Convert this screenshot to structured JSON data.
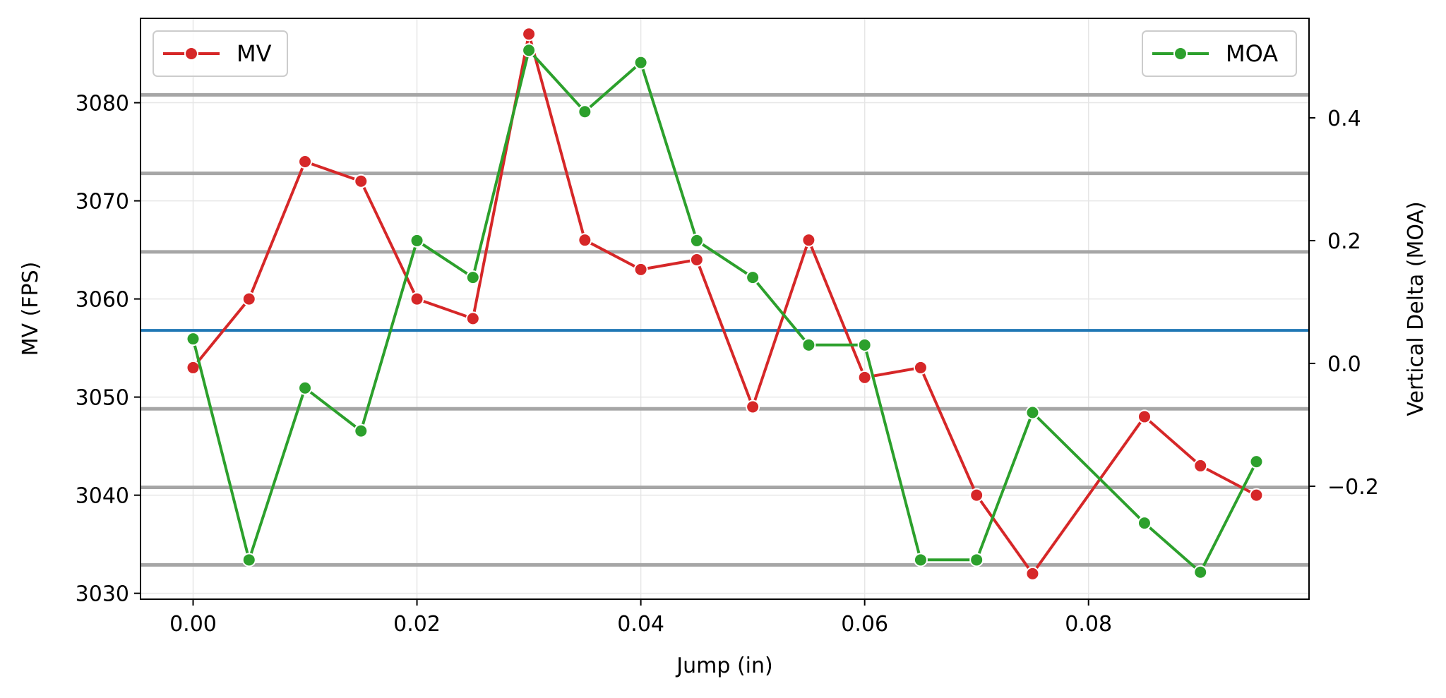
{
  "chart_data": {
    "type": "line",
    "xlabel": "Jump (in)",
    "ylabel_left": "MV (FPS)",
    "ylabel_right": "Vertical Delta (MOA)",
    "x": [
      0.0,
      0.005,
      0.01,
      0.015,
      0.02,
      0.025,
      0.03,
      0.035,
      0.04,
      0.045,
      0.05,
      0.055,
      0.06,
      0.065,
      0.07,
      0.075,
      0.08,
      0.085,
      0.09,
      0.095
    ],
    "xlim": [
      -0.0047,
      0.0997
    ],
    "ylim_left": [
      3029.4,
      3088.6
    ],
    "ylim_right": [
      -0.384,
      0.562
    ],
    "x_ticks": [
      "0.00",
      "0.02",
      "0.04",
      "0.06",
      "0.08"
    ],
    "x_tick_values": [
      0.0,
      0.02,
      0.04,
      0.06,
      0.08
    ],
    "y_left_ticks": [
      "3030",
      "3040",
      "3050",
      "3060",
      "3070",
      "3080"
    ],
    "y_left_tick_values": [
      3030,
      3040,
      3050,
      3060,
      3070,
      3080
    ],
    "y_right_ticks": [
      "−0.2",
      "0.0",
      "0.2",
      "0.4"
    ],
    "y_right_tick_values": [
      -0.2,
      0.0,
      0.2,
      0.4
    ],
    "grid": true,
    "series": [
      {
        "name": "MV",
        "axis": "left",
        "color": "#d62728",
        "points": [
          [
            0.0,
            3053
          ],
          [
            0.005,
            3060
          ],
          [
            0.01,
            3074
          ],
          [
            0.015,
            3072
          ],
          [
            0.02,
            3060
          ],
          [
            0.025,
            3058
          ],
          [
            0.03,
            3087
          ],
          [
            0.035,
            3066
          ],
          [
            0.04,
            3063
          ],
          [
            0.045,
            3064
          ],
          [
            0.05,
            3049
          ],
          [
            0.055,
            3066
          ],
          [
            0.06,
            3052
          ],
          [
            0.065,
            3053
          ],
          [
            0.07,
            3040
          ],
          [
            0.075,
            3032
          ],
          [
            0.085,
            3048
          ],
          [
            0.09,
            3043
          ],
          [
            0.095,
            3040
          ]
        ]
      },
      {
        "name": "MOA",
        "axis": "right",
        "color": "#2ca02c",
        "points": [
          [
            0.0,
            0.04
          ],
          [
            0.005,
            -0.32
          ],
          [
            0.01,
            -0.04
          ],
          [
            0.015,
            -0.11
          ],
          [
            0.02,
            0.2
          ],
          [
            0.025,
            0.14
          ],
          [
            0.03,
            0.51
          ],
          [
            0.035,
            0.41
          ],
          [
            0.04,
            0.49
          ],
          [
            0.045,
            0.2
          ],
          [
            0.05,
            0.14
          ],
          [
            0.055,
            0.03
          ],
          [
            0.06,
            0.03
          ],
          [
            0.065,
            -0.32
          ],
          [
            0.07,
            -0.32
          ],
          [
            0.075,
            -0.08
          ],
          [
            0.085,
            -0.26
          ],
          [
            0.09,
            -0.34
          ],
          [
            0.095,
            -0.16
          ]
        ]
      }
    ],
    "reference_lines": {
      "axis": "left",
      "gray_values": [
        3032.9,
        3040.8,
        3048.8,
        3064.8,
        3072.8,
        3080.8
      ],
      "gray_color": "#a6a6a6",
      "blue_value": 3056.8,
      "blue_color": "#1f77b4"
    },
    "legends": [
      {
        "label": "MV",
        "placement": "top-left",
        "color": "#d62728"
      },
      {
        "label": "MOA",
        "placement": "top-right",
        "color": "#2ca02c"
      }
    ]
  }
}
